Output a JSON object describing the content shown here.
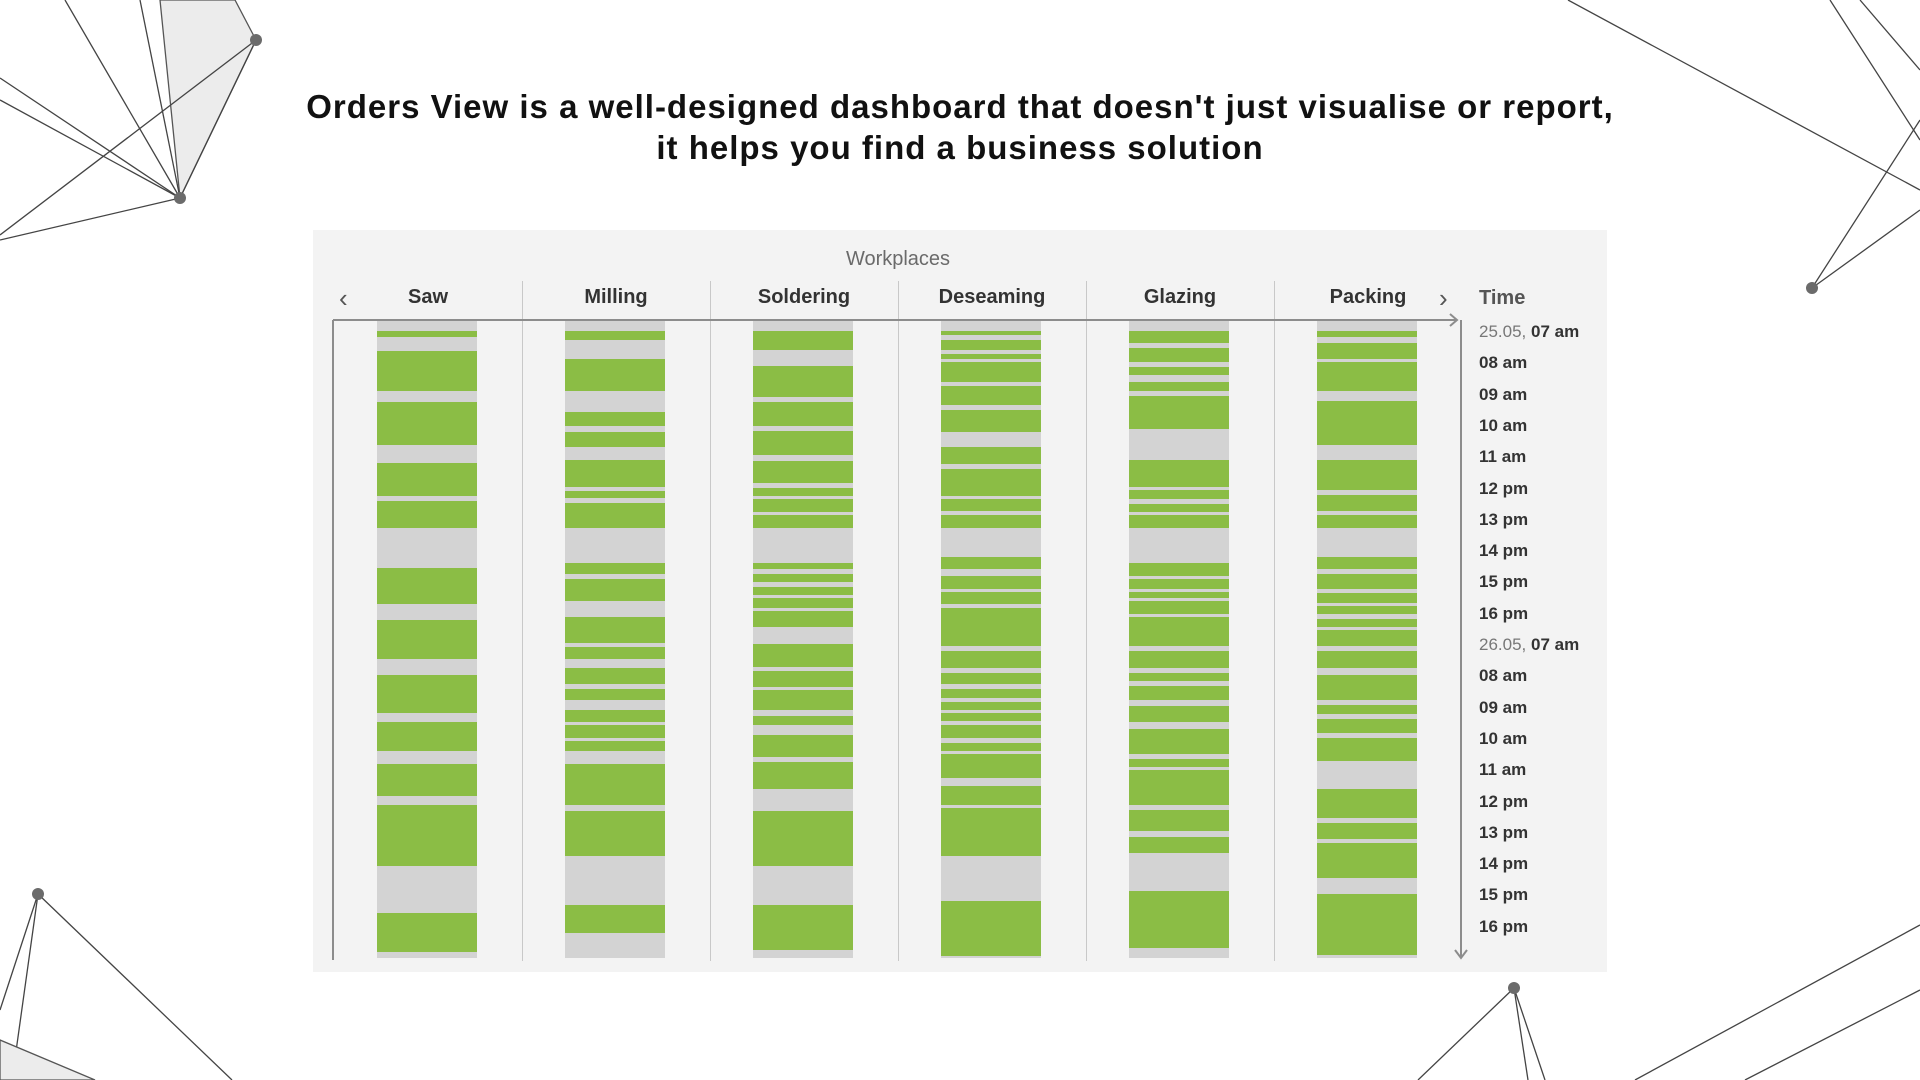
{
  "headline": {
    "line1": "Orders View is a well-designed dashboard that doesn't just visualise or report,",
    "line2": "it helps you find a business solution"
  },
  "panel": {
    "title": "Workplaces",
    "prev_icon": "chevron-left-icon",
    "next_icon": "chevron-right-icon",
    "time_heading": "Time"
  },
  "colors": {
    "busy": "#8bbd45",
    "idle": "#d3d3d3",
    "panel": "#f3f3f3"
  },
  "columns": [
    {
      "label": "Saw"
    },
    {
      "label": "Milling"
    },
    {
      "label": "Soldering"
    },
    {
      "label": "Deseaming"
    },
    {
      "label": "Glazing"
    },
    {
      "label": "Packing"
    }
  ],
  "time_labels": [
    {
      "date": "25.05,",
      "time": "07 am"
    },
    {
      "date": "",
      "time": "08 am"
    },
    {
      "date": "",
      "time": "09 am"
    },
    {
      "date": "",
      "time": "10 am"
    },
    {
      "date": "",
      "time": "11 am"
    },
    {
      "date": "",
      "time": "12 pm"
    },
    {
      "date": "",
      "time": "13 pm"
    },
    {
      "date": "",
      "time": "14 pm"
    },
    {
      "date": "",
      "time": "15 pm"
    },
    {
      "date": "",
      "time": "16 pm"
    },
    {
      "date": "26.05,",
      "time": "07 am"
    },
    {
      "date": "",
      "time": "08 am"
    },
    {
      "date": "",
      "time": "09 am"
    },
    {
      "date": "",
      "time": "10 am"
    },
    {
      "date": "",
      "time": "11 am"
    },
    {
      "date": "",
      "time": "12 pm"
    },
    {
      "date": "",
      "time": "13 pm"
    },
    {
      "date": "",
      "time": "14 pm"
    },
    {
      "date": "",
      "time": "15 pm"
    },
    {
      "date": "",
      "time": "16 pm"
    }
  ],
  "schedule": {
    "time_range_hours": [
      0,
      20
    ],
    "workplaces": [
      {
        "name": "Saw",
        "busy": [
          [
            0.3,
            0.5
          ],
          [
            0.95,
            2.2
          ],
          [
            2.55,
            3.9
          ],
          [
            4.45,
            5.5
          ],
          [
            5.65,
            6.5
          ],
          [
            7.75,
            8.9
          ],
          [
            9.4,
            10.6
          ],
          [
            11.1,
            12.3
          ],
          [
            12.6,
            13.5
          ],
          [
            13.9,
            14.9
          ],
          [
            15.2,
            17.1
          ],
          [
            18.6,
            19.8
          ]
        ]
      },
      {
        "name": "Milling",
        "busy": [
          [
            0.3,
            0.6
          ],
          [
            1.2,
            2.2
          ],
          [
            2.85,
            3.3
          ],
          [
            3.5,
            3.95
          ],
          [
            4.35,
            5.2
          ],
          [
            5.35,
            5.55
          ],
          [
            5.7,
            6.5
          ],
          [
            7.6,
            7.95
          ],
          [
            8.1,
            8.8
          ],
          [
            9.3,
            10.1
          ],
          [
            10.25,
            10.6
          ],
          [
            10.9,
            11.4
          ],
          [
            11.55,
            11.9
          ],
          [
            12.2,
            12.6
          ],
          [
            12.7,
            13.1
          ],
          [
            13.2,
            13.5
          ],
          [
            13.9,
            15.2
          ],
          [
            15.4,
            16.8
          ],
          [
            18.35,
            19.2
          ]
        ]
      },
      {
        "name": "Soldering",
        "busy": [
          [
            0.3,
            0.9
          ],
          [
            1.4,
            2.4
          ],
          [
            2.55,
            3.3
          ],
          [
            3.45,
            4.2
          ],
          [
            4.4,
            5.1
          ],
          [
            5.25,
            5.5
          ],
          [
            5.6,
            6.0
          ],
          [
            6.1,
            6.5
          ],
          [
            7.6,
            7.8
          ],
          [
            7.95,
            8.2
          ],
          [
            8.35,
            8.6
          ],
          [
            8.7,
            9.0
          ],
          [
            9.1,
            9.6
          ],
          [
            10.15,
            10.85
          ],
          [
            11.0,
            11.5
          ],
          [
            11.6,
            12.2
          ],
          [
            12.4,
            12.7
          ],
          [
            13.0,
            13.7
          ],
          [
            13.85,
            14.7
          ],
          [
            15.4,
            17.1
          ],
          [
            18.35,
            19.75
          ]
        ]
      },
      {
        "name": "Deseaming",
        "busy": [
          [
            0.3,
            0.45
          ],
          [
            0.6,
            0.9
          ],
          [
            1.05,
            1.2
          ],
          [
            1.3,
            1.9
          ],
          [
            2.05,
            2.65
          ],
          [
            2.8,
            3.5
          ],
          [
            3.95,
            4.5
          ],
          [
            4.65,
            5.5
          ],
          [
            5.6,
            5.95
          ],
          [
            6.1,
            6.5
          ],
          [
            7.4,
            7.8
          ],
          [
            8.0,
            8.4
          ],
          [
            8.5,
            8.9
          ],
          [
            9.0,
            10.2
          ],
          [
            10.35,
            10.9
          ],
          [
            11.05,
            11.4
          ],
          [
            11.55,
            11.85
          ],
          [
            11.95,
            12.2
          ],
          [
            12.3,
            12.55
          ],
          [
            12.7,
            13.1
          ],
          [
            13.25,
            13.5
          ],
          [
            13.6,
            14.35
          ],
          [
            14.6,
            15.2
          ],
          [
            15.3,
            16.8
          ],
          [
            18.2,
            19.95
          ]
        ]
      },
      {
        "name": "Glazing",
        "busy": [
          [
            0.3,
            0.7
          ],
          [
            0.85,
            1.3
          ],
          [
            1.45,
            1.7
          ],
          [
            1.9,
            2.2
          ],
          [
            2.35,
            3.4
          ],
          [
            4.35,
            5.2
          ],
          [
            5.3,
            5.6
          ],
          [
            5.75,
            6.0
          ],
          [
            6.1,
            6.5
          ],
          [
            7.6,
            8.0
          ],
          [
            8.1,
            8.4
          ],
          [
            8.5,
            8.7
          ],
          [
            8.8,
            9.2
          ],
          [
            9.3,
            10.2
          ],
          [
            10.35,
            10.9
          ],
          [
            11.05,
            11.3
          ],
          [
            11.45,
            11.9
          ],
          [
            12.1,
            12.6
          ],
          [
            12.8,
            13.6
          ],
          [
            13.75,
            14.0
          ],
          [
            14.1,
            15.2
          ],
          [
            15.35,
            16.0
          ],
          [
            16.2,
            16.7
          ],
          [
            17.9,
            19.7
          ]
        ]
      },
      {
        "name": "Packing",
        "busy": [
          [
            0.3,
            0.5
          ],
          [
            0.7,
            1.2
          ],
          [
            1.3,
            2.2
          ],
          [
            2.5,
            3.9
          ],
          [
            4.35,
            5.3
          ],
          [
            5.45,
            5.95
          ],
          [
            6.1,
            6.5
          ],
          [
            7.4,
            7.8
          ],
          [
            7.95,
            8.4
          ],
          [
            8.55,
            8.85
          ],
          [
            8.95,
            9.2
          ],
          [
            9.35,
            9.6
          ],
          [
            9.7,
            10.2
          ],
          [
            10.35,
            10.9
          ],
          [
            11.1,
            11.9
          ],
          [
            12.05,
            12.35
          ],
          [
            12.5,
            12.95
          ],
          [
            13.1,
            13.8
          ],
          [
            14.7,
            15.6
          ],
          [
            15.75,
            16.25
          ],
          [
            16.4,
            17.5
          ],
          [
            18.0,
            19.9
          ]
        ]
      }
    ]
  }
}
